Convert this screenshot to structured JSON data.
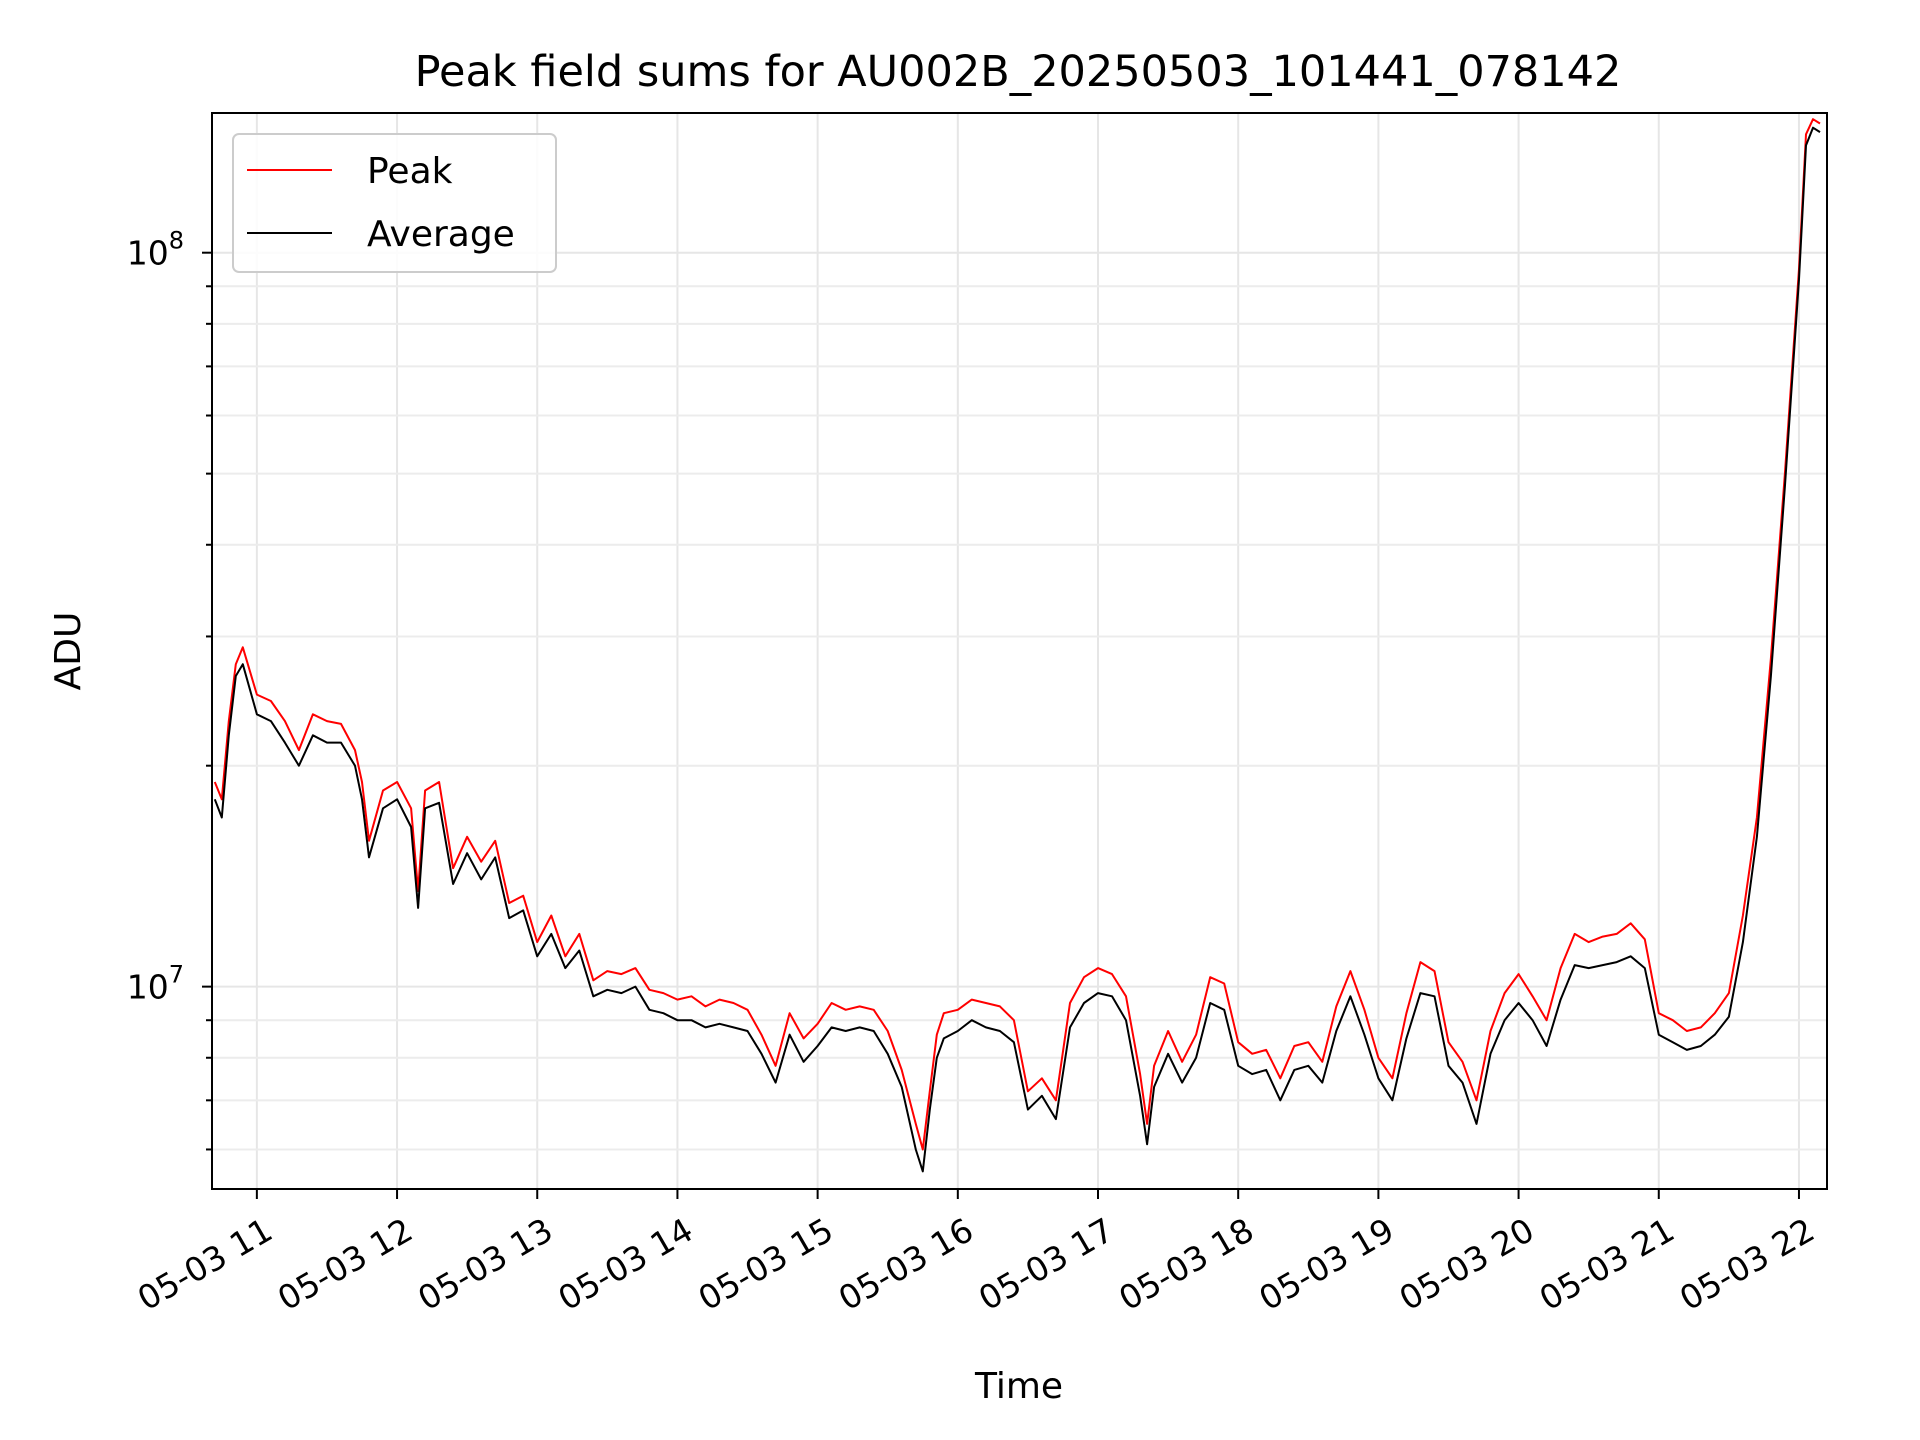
{
  "chart_data": {
    "type": "line",
    "title": "Peak field sums for AU002B_20250503_101441_078142",
    "xlabel": "Time",
    "ylabel": "ADU",
    "yscale": "log",
    "ylim": [
      5300000,
      155000000
    ],
    "xlim": [
      10.68,
      22.2
    ],
    "grid": true,
    "legend_position": "top-left",
    "x_ticks": [
      {
        "value": 11,
        "label": "05-03 11"
      },
      {
        "value": 12,
        "label": "05-03 12"
      },
      {
        "value": 13,
        "label": "05-03 13"
      },
      {
        "value": 14,
        "label": "05-03 14"
      },
      {
        "value": 15,
        "label": "05-03 15"
      },
      {
        "value": 16,
        "label": "05-03 16"
      },
      {
        "value": 17,
        "label": "05-03 17"
      },
      {
        "value": 18,
        "label": "05-03 18"
      },
      {
        "value": 19,
        "label": "05-03 19"
      },
      {
        "value": 20,
        "label": "05-03 20"
      },
      {
        "value": 21,
        "label": "05-03 21"
      },
      {
        "value": 22,
        "label": "05-03 22"
      }
    ],
    "y_ticks": [
      {
        "value": 10000000,
        "base": "10",
        "exp": "7"
      },
      {
        "value": 100000000,
        "base": "10",
        "exp": "8"
      }
    ],
    "series": [
      {
        "name": "Peak",
        "color": "#ff0000",
        "x": [
          10.7,
          10.75,
          10.8,
          10.85,
          10.9,
          11.0,
          11.1,
          11.2,
          11.3,
          11.4,
          11.5,
          11.6,
          11.7,
          11.75,
          11.8,
          11.9,
          12.0,
          12.1,
          12.15,
          12.2,
          12.3,
          12.4,
          12.5,
          12.6,
          12.7,
          12.8,
          12.9,
          13.0,
          13.1,
          13.2,
          13.3,
          13.4,
          13.5,
          13.6,
          13.7,
          13.8,
          13.9,
          14.0,
          14.1,
          14.2,
          14.3,
          14.4,
          14.5,
          14.6,
          14.7,
          14.8,
          14.9,
          15.0,
          15.1,
          15.2,
          15.3,
          15.4,
          15.5,
          15.6,
          15.7,
          15.75,
          15.8,
          15.85,
          15.9,
          16.0,
          16.1,
          16.2,
          16.3,
          16.4,
          16.5,
          16.6,
          16.7,
          16.8,
          16.9,
          17.0,
          17.1,
          17.2,
          17.3,
          17.35,
          17.4,
          17.5,
          17.6,
          17.7,
          17.8,
          17.9,
          18.0,
          18.1,
          18.2,
          18.3,
          18.4,
          18.5,
          18.6,
          18.7,
          18.8,
          18.9,
          19.0,
          19.1,
          19.2,
          19.3,
          19.4,
          19.5,
          19.6,
          19.7,
          19.8,
          19.9,
          20.0,
          20.1,
          20.2,
          20.3,
          20.4,
          20.5,
          20.6,
          20.7,
          20.8,
          20.9,
          21.0,
          21.1,
          21.2,
          21.3,
          21.4,
          21.5,
          21.6,
          21.7,
          21.8,
          21.9,
          22.0,
          22.05,
          22.1,
          22.15
        ],
        "values": [
          19000000,
          18000000,
          23000000,
          27500000,
          29000000,
          25000000,
          24500000,
          23000000,
          21000000,
          23500000,
          23000000,
          22800000,
          21000000,
          19000000,
          15800000,
          18500000,
          19000000,
          17500000,
          13500000,
          18500000,
          19000000,
          14500000,
          16000000,
          14800000,
          15800000,
          13000000,
          13300000,
          11500000,
          12500000,
          11000000,
          11800000,
          10200000,
          10500000,
          10400000,
          10600000,
          9900000,
          9800000,
          9600000,
          9700000,
          9400000,
          9600000,
          9500000,
          9300000,
          8600000,
          7800000,
          9200000,
          8500000,
          8900000,
          9500000,
          9300000,
          9400000,
          9300000,
          8700000,
          7700000,
          6500000,
          6000000,
          7200000,
          8600000,
          9200000,
          9300000,
          9600000,
          9500000,
          9400000,
          9000000,
          7200000,
          7500000,
          7000000,
          9500000,
          10300000,
          10600000,
          10400000,
          9700000,
          7600000,
          6500000,
          7800000,
          8700000,
          7900000,
          8600000,
          10300000,
          10100000,
          8400000,
          8100000,
          8200000,
          7500000,
          8300000,
          8400000,
          7900000,
          9400000,
          10500000,
          9300000,
          8000000,
          7500000,
          9200000,
          10800000,
          10500000,
          8400000,
          7900000,
          7000000,
          8700000,
          9800000,
          10400000,
          9700000,
          9000000,
          10600000,
          11800000,
          11500000,
          11700000,
          11800000,
          12200000,
          11600000,
          9200000,
          9000000,
          8700000,
          8800000,
          9200000,
          9800000,
          12500000,
          17000000,
          28000000,
          50000000,
          95000000,
          145000000,
          152000000,
          150000000
        ],
        "stroke_width": 2
      },
      {
        "name": "Average",
        "color": "#000000",
        "x": [
          10.7,
          10.75,
          10.8,
          10.85,
          10.9,
          11.0,
          11.1,
          11.2,
          11.3,
          11.4,
          11.5,
          11.6,
          11.7,
          11.75,
          11.8,
          11.9,
          12.0,
          12.1,
          12.15,
          12.2,
          12.3,
          12.4,
          12.5,
          12.6,
          12.7,
          12.8,
          12.9,
          13.0,
          13.1,
          13.2,
          13.3,
          13.4,
          13.5,
          13.6,
          13.7,
          13.8,
          13.9,
          14.0,
          14.1,
          14.2,
          14.3,
          14.4,
          14.5,
          14.6,
          14.7,
          14.8,
          14.9,
          15.0,
          15.1,
          15.2,
          15.3,
          15.4,
          15.5,
          15.6,
          15.7,
          15.75,
          15.8,
          15.85,
          15.9,
          16.0,
          16.1,
          16.2,
          16.3,
          16.4,
          16.5,
          16.6,
          16.7,
          16.8,
          16.9,
          17.0,
          17.1,
          17.2,
          17.3,
          17.35,
          17.4,
          17.5,
          17.6,
          17.7,
          17.8,
          17.9,
          18.0,
          18.1,
          18.2,
          18.3,
          18.4,
          18.5,
          18.6,
          18.7,
          18.8,
          18.9,
          19.0,
          19.1,
          19.2,
          19.3,
          19.4,
          19.5,
          19.6,
          19.7,
          19.8,
          19.9,
          20.0,
          20.1,
          20.2,
          20.3,
          20.4,
          20.5,
          20.6,
          20.7,
          20.8,
          20.9,
          21.0,
          21.1,
          21.2,
          21.3,
          21.4,
          21.5,
          21.6,
          21.7,
          21.8,
          21.9,
          22.0,
          22.05,
          22.1,
          22.15
        ],
        "values": [
          18000000,
          17000000,
          22000000,
          26500000,
          27500000,
          23500000,
          23000000,
          21500000,
          20000000,
          22000000,
          21500000,
          21500000,
          20000000,
          18000000,
          15000000,
          17500000,
          18000000,
          16500000,
          12800000,
          17500000,
          17800000,
          13800000,
          15200000,
          14000000,
          15000000,
          12400000,
          12700000,
          11000000,
          11800000,
          10600000,
          11200000,
          9700000,
          9900000,
          9800000,
          10000000,
          9300000,
          9200000,
          9000000,
          9000000,
          8800000,
          8900000,
          8800000,
          8700000,
          8100000,
          7400000,
          8600000,
          7900000,
          8300000,
          8800000,
          8700000,
          8800000,
          8700000,
          8100000,
          7300000,
          6000000,
          5600000,
          6800000,
          8000000,
          8500000,
          8700000,
          9000000,
          8800000,
          8700000,
          8400000,
          6800000,
          7100000,
          6600000,
          8800000,
          9500000,
          9800000,
          9700000,
          9000000,
          7100000,
          6100000,
          7300000,
          8100000,
          7400000,
          8000000,
          9500000,
          9300000,
          7800000,
          7600000,
          7700000,
          7000000,
          7700000,
          7800000,
          7400000,
          8700000,
          9700000,
          8600000,
          7500000,
          7000000,
          8500000,
          9800000,
          9700000,
          7800000,
          7400000,
          6500000,
          8100000,
          9000000,
          9500000,
          9000000,
          8300000,
          9600000,
          10700000,
          10600000,
          10700000,
          10800000,
          11000000,
          10600000,
          8600000,
          8400000,
          8200000,
          8300000,
          8600000,
          9100000,
          11500000,
          16000000,
          26500000,
          48000000,
          92000000,
          140000000,
          148000000,
          146000000
        ],
        "stroke_width": 2
      }
    ]
  }
}
